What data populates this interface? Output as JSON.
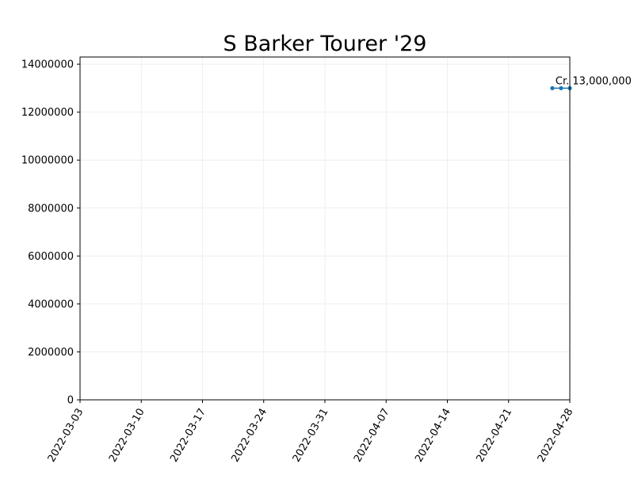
{
  "chart_data": {
    "type": "line",
    "title": "S Barker Tourer '29",
    "xlabel": "",
    "ylabel": "",
    "x_ticks": [
      "2022-03-03",
      "2022-03-10",
      "2022-03-17",
      "2022-03-24",
      "2022-03-31",
      "2022-04-07",
      "2022-04-14",
      "2022-04-21",
      "2022-04-28"
    ],
    "y_ticks": [
      0,
      2000000,
      4000000,
      6000000,
      8000000,
      10000000,
      12000000,
      14000000
    ],
    "xlim": [
      "2022-03-03",
      "2022-04-28"
    ],
    "ylim": [
      0,
      14300000
    ],
    "grid": true,
    "series": [
      {
        "x": [
          "2022-04-26",
          "2022-04-27",
          "2022-04-28"
        ],
        "y": [
          13000000,
          13000000,
          13000000
        ],
        "color": "#1f77b4"
      }
    ],
    "annotations": [
      {
        "text": "Cr. 13,000,000",
        "x": "2022-04-26",
        "y": 13000000
      }
    ]
  }
}
